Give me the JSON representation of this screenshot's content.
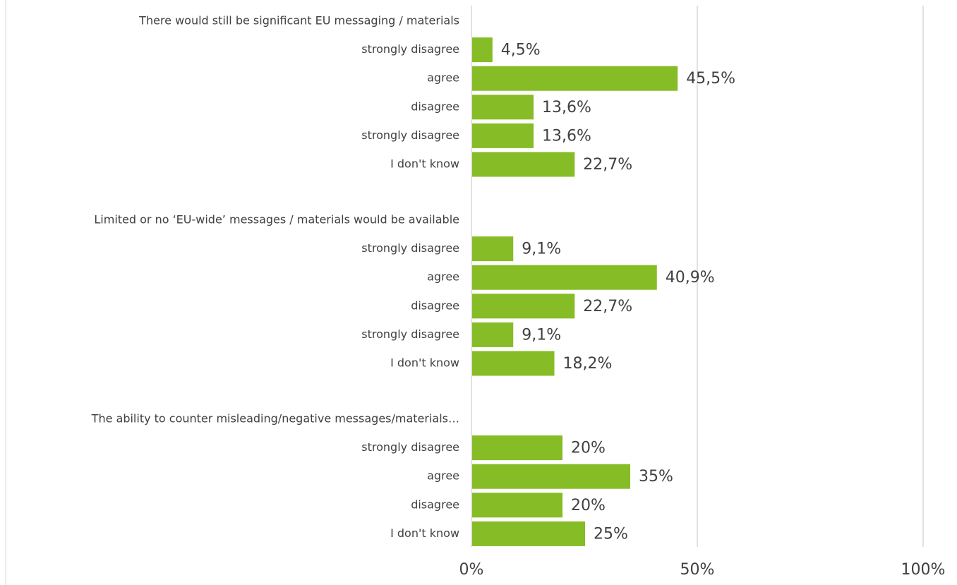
{
  "chart_data": {
    "type": "bar",
    "orientation": "horizontal",
    "xlim": [
      0,
      100
    ],
    "x_ticks": [
      "0%",
      "50%",
      "100%"
    ],
    "grid": true,
    "bar_color": "#86bc25",
    "groups": [
      {
        "title": "There would still be significant EU messaging / materials",
        "categories": [
          "strongly disagree",
          "agree",
          "disagree",
          "strongly disagree",
          "I don't know"
        ],
        "values": [
          4.5,
          45.5,
          13.6,
          13.6,
          22.7
        ],
        "labels": [
          "4,5%",
          "45,5%",
          "13,6%",
          "13,6%",
          "22,7%"
        ]
      },
      {
        "title": "Limited or no ‘EU-wide’ messages / materials would be available",
        "categories": [
          "strongly disagree",
          "agree",
          "disagree",
          "strongly disagree",
          "I don't know"
        ],
        "values": [
          9.1,
          40.9,
          22.7,
          9.1,
          18.2
        ],
        "labels": [
          "9,1%",
          "40,9%",
          "22,7%",
          "9,1%",
          "18,2%"
        ]
      },
      {
        "title": "The ability to counter misleading/negative messages/materials…",
        "categories": [
          "strongly disagree",
          "agree",
          "disagree",
          "I don't know"
        ],
        "values": [
          20,
          35,
          20,
          25
        ],
        "labels": [
          "20%",
          "35%",
          "20%",
          "25%"
        ]
      }
    ]
  }
}
